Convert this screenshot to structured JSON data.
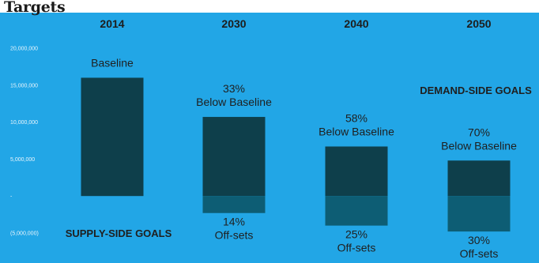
{
  "page": {
    "heading": "Targets"
  },
  "colors": {
    "background": "#22a6e6",
    "demand_bar": "#0e3f4b",
    "supply_bar": "#0d5d74",
    "text": "#1f1f1f"
  },
  "chart_data": {
    "type": "bar",
    "categories": [
      "2014",
      "2030",
      "2040",
      "2050"
    ],
    "series": [
      {
        "values": [
          16000000,
          10700000,
          6700000,
          4800000
        ]
      },
      {
        "values": [
          0,
          -2300000,
          -4000000,
          -4800000
        ]
      }
    ],
    "ylim": [
      -5000000,
      20000000
    ],
    "yticks": [
      "20,000,000",
      "15,000,000",
      "10,000,000",
      "5,000,000",
      "-",
      "(5,000,000)"
    ],
    "grid": false,
    "annotations": [
      [
        "Baseline"
      ],
      [
        "33%",
        "Below Baseline"
      ],
      [
        "58%",
        "Below Baseline"
      ],
      [
        "70%",
        "Below Baseline"
      ]
    ],
    "negative_annotations": [
      [],
      [
        "14%",
        "Off-sets"
      ],
      [
        "25%",
        "Off-sets"
      ],
      [
        "30%",
        "Off-sets"
      ]
    ],
    "goal_labels": {
      "demand": "DEMAND-SIDE GOALS",
      "supply": "SUPPLY-SIDE GOALS"
    }
  }
}
